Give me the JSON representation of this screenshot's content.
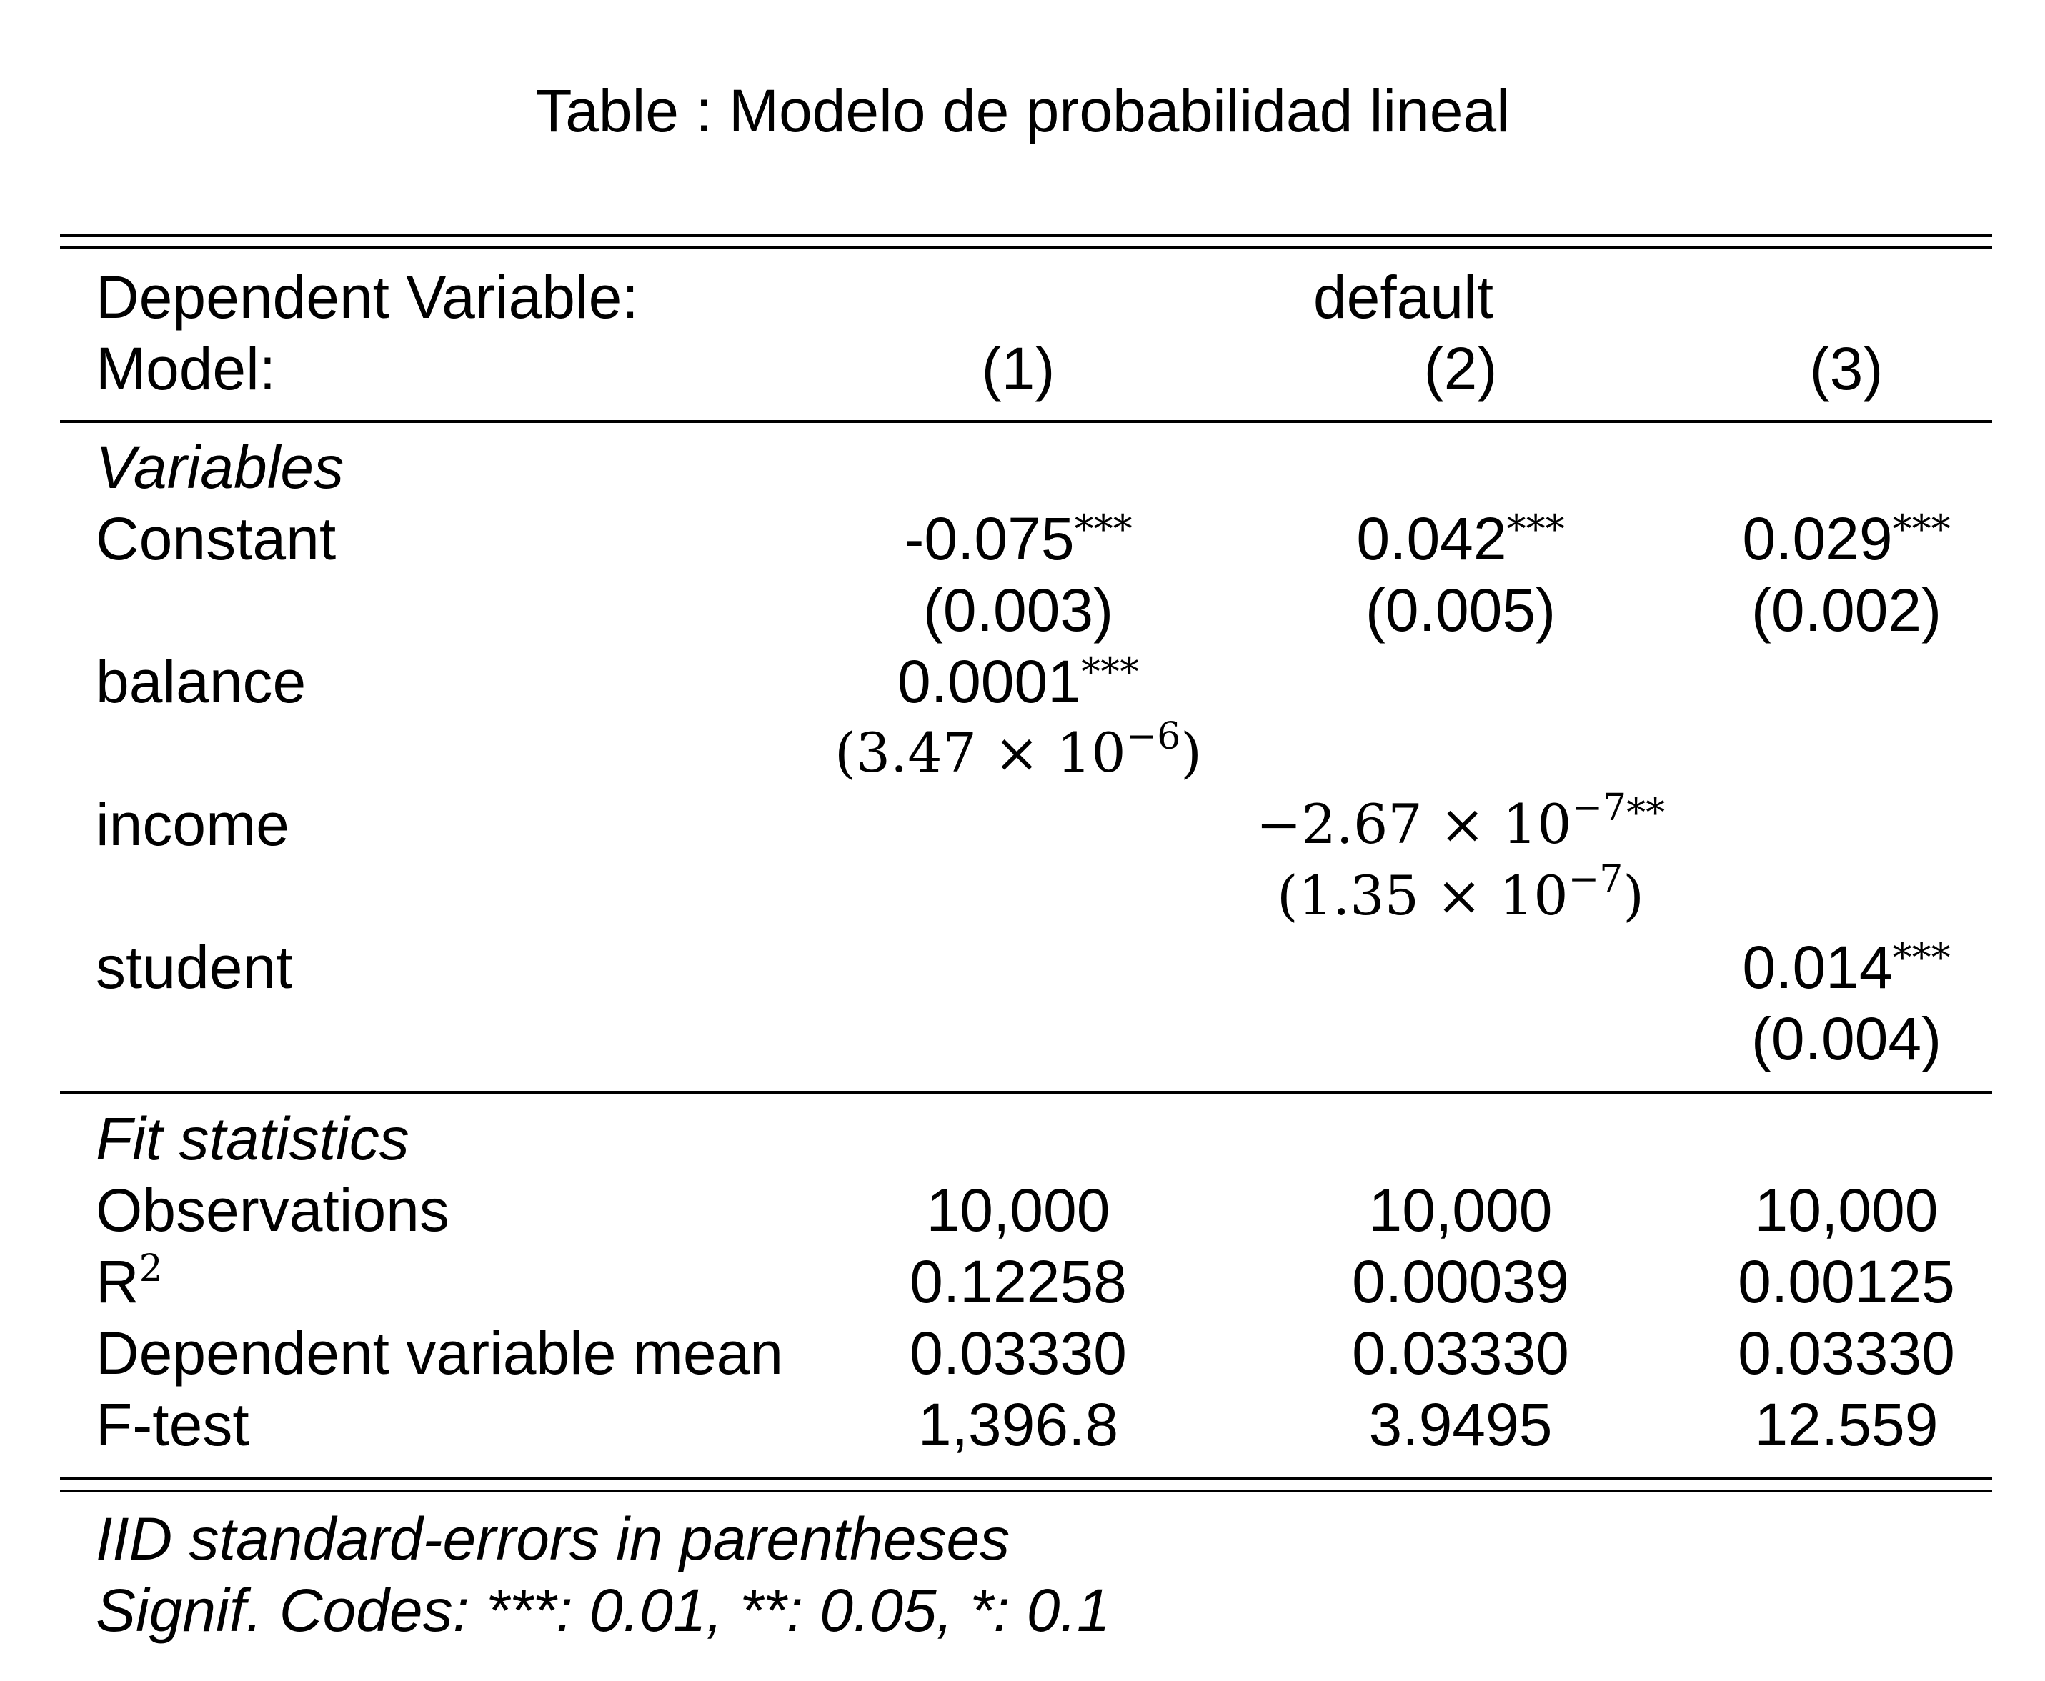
{
  "title": "Table : Modelo de probabilidad lineal",
  "header": {
    "dependent_variable_label": "Dependent Variable:",
    "dependent_variable_value": "default",
    "model_label": "Model:",
    "models": [
      "(1)",
      "(2)",
      "(3)"
    ]
  },
  "variables_section": {
    "heading": "Variables",
    "rows": [
      {
        "label": "Constant",
        "cells": [
          {
            "estimate": "-0.075",
            "stars": "***",
            "se": "(0.003)"
          },
          {
            "estimate": "0.042",
            "stars": "***",
            "se": "(0.005)"
          },
          {
            "estimate": "0.029",
            "stars": "***",
            "se": "(0.002)"
          }
        ]
      },
      {
        "label": "balance",
        "cells": [
          {
            "estimate": "0.0001",
            "stars": "***",
            "se_open": "(",
            "se_mantissa": "3.47 × 10",
            "se_exponent": "−6",
            "se_close": ")"
          },
          null,
          null
        ]
      },
      {
        "label": "income",
        "cells": [
          null,
          {
            "estimate_mantissa": "−2.67 × 10",
            "estimate_exponent": "−7",
            "stars": "**",
            "se_open": "(",
            "se_mantissa": "1.35 × 10",
            "se_exponent": "−7",
            "se_close": ")"
          },
          null
        ]
      },
      {
        "label": "student",
        "cells": [
          null,
          null,
          {
            "estimate": "0.014",
            "stars": "***",
            "se": "(0.004)"
          }
        ]
      }
    ]
  },
  "fit_section": {
    "heading": "Fit statistics",
    "rows": [
      {
        "label": "Observations",
        "values": [
          "10,000",
          "10,000",
          "10,000"
        ]
      },
      {
        "label_base": "R",
        "label_sup": "2",
        "values": [
          "0.12258",
          "0.00039",
          "0.00125"
        ]
      },
      {
        "label": "Dependent variable mean",
        "values": [
          "0.03330",
          "0.03330",
          "0.03330"
        ]
      },
      {
        "label": "F-test",
        "values": [
          "1,396.8",
          "3.9495",
          "12.559"
        ]
      }
    ]
  },
  "footnotes": [
    "IID standard-errors in parentheses",
    "Signif. Codes: ***: 0.01, **: 0.05, *: 0.1"
  ]
}
